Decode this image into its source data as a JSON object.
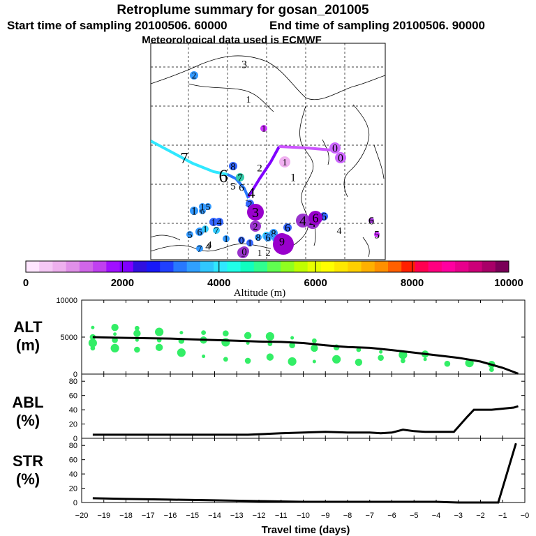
{
  "header": {
    "title": "Retroplume summary for gosan_201005",
    "start_line": "Start time of sampling 20100506. 60000",
    "end_line": "End time of sampling 20100506. 90000",
    "met_line": "Meteorological data used is ECMWF"
  },
  "chart_data": [
    {
      "type": "scatter",
      "name": "retroplume-map",
      "title": "Retroplume summary for gosan_201005",
      "grid": true,
      "trajectory_colored_by_altitude": true,
      "numbered_positions": [
        {
          "label": "3",
          "marker_color": "#000000",
          "marker": false
        },
        {
          "label": "2",
          "marker_color": "#3399ff",
          "marker": true
        },
        {
          "label": "1",
          "marker_color": "#000000",
          "marker": false
        },
        {
          "label": "1",
          "marker_color": "#cc33ff",
          "marker": true
        },
        {
          "label": "1",
          "marker_color": "#000000",
          "marker": false
        },
        {
          "label": "1",
          "marker_color": "#f0b0f0",
          "marker": true
        },
        {
          "label": "0",
          "marker_color": "#cc66ff",
          "marker": true
        },
        {
          "label": "0",
          "marker_color": "#cc66ff",
          "marker": true
        },
        {
          "label": "7",
          "marker_color": "#000000",
          "marker": false
        },
        {
          "label": "8",
          "marker_color": "#3366ff",
          "marker": true
        },
        {
          "label": "6",
          "marker_color": "#000000",
          "marker": false
        },
        {
          "label": "7",
          "marker_color": "#33ccaa",
          "marker": true
        },
        {
          "label": "2",
          "marker_color": "#000000",
          "marker": false
        },
        {
          "label": "5",
          "marker_color": "#000000",
          "marker": false
        },
        {
          "label": "6",
          "marker_color": "#000000",
          "marker": false
        },
        {
          "label": "4",
          "marker_color": "#000000",
          "marker": false
        },
        {
          "label": "1",
          "marker_color": "#000000",
          "marker": false
        },
        {
          "label": "2",
          "marker_color": "#3366ff",
          "marker": true
        },
        {
          "label": "3",
          "marker_color": "#9900cc",
          "marker": true
        },
        {
          "label": "1",
          "marker_color": "#3399ff",
          "marker": true
        },
        {
          "label": "6",
          "marker_color": "#3399ff",
          "marker": true
        },
        {
          "label": "1",
          "marker_color": "#3399ff",
          "marker": true
        },
        {
          "label": "5",
          "marker_color": "#3399ff",
          "marker": true
        },
        {
          "label": "1",
          "marker_color": "#3366ff",
          "marker": true
        },
        {
          "label": "4",
          "marker_color": "#3366ff",
          "marker": true
        },
        {
          "label": "5",
          "marker_color": "#3399ff",
          "marker": true
        },
        {
          "label": "6",
          "marker_color": "#3399ff",
          "marker": true
        },
        {
          "label": "1",
          "marker_color": "#33ccff",
          "marker": true
        },
        {
          "label": "7",
          "marker_color": "#33ccff",
          "marker": true
        },
        {
          "label": "2",
          "marker_color": "#9933cc",
          "marker": true
        },
        {
          "label": "4",
          "marker_color": "#9933cc",
          "marker": true
        },
        {
          "label": "4",
          "marker_color": "#9933cc",
          "marker": true
        },
        {
          "label": "6",
          "marker_color": "#3366ff",
          "marker": true
        },
        {
          "label": "6",
          "marker_color": "#9900cc",
          "marker": true
        },
        {
          "label": "4",
          "marker_color": "#000000",
          "marker": false
        },
        {
          "label": "6",
          "marker_color": "#9933cc",
          "marker": true
        },
        {
          "label": "5",
          "marker_color": "#cc33ff",
          "marker": true
        },
        {
          "label": "6",
          "marker_color": "#3366ff",
          "marker": true
        },
        {
          "label": "8",
          "marker_color": "#3399ff",
          "marker": true
        },
        {
          "label": "5",
          "marker_color": "#33ccff",
          "marker": true
        },
        {
          "label": "4",
          "marker_color": "#000000",
          "marker": false
        },
        {
          "label": "1",
          "marker_color": "#3399ff",
          "marker": true
        },
        {
          "label": "0",
          "marker_color": "#3366ff",
          "marker": true
        },
        {
          "label": "1",
          "marker_color": "#3366ff",
          "marker": true
        },
        {
          "label": "8",
          "marker_color": "#3399ff",
          "marker": true
        },
        {
          "label": "6",
          "marker_color": "#3399ff",
          "marker": true
        },
        {
          "label": "4",
          "marker_color": "#3399ff",
          "marker": true
        },
        {
          "label": "9",
          "marker_color": "#9900cc",
          "marker": true
        },
        {
          "label": "1",
          "marker_color": "#9933cc",
          "marker": true
        },
        {
          "label": "0",
          "marker_color": "#9933cc",
          "marker": true
        },
        {
          "label": "1",
          "marker_color": "#9933cc",
          "marker": true
        },
        {
          "label": "2",
          "marker_color": "#9933cc",
          "marker": true
        },
        {
          "label": "7",
          "marker_color": "#3399ff",
          "marker": true
        },
        {
          "label": "4",
          "marker_color": "#000000",
          "marker": false
        },
        {
          "label": "9",
          "marker_color": "#9900cc",
          "marker": true
        }
      ]
    },
    {
      "type": "colorbar",
      "name": "altitude-colorbar",
      "xlabel": "Altitude (m)",
      "range": [
        0,
        10000
      ],
      "ticks": [
        0,
        2000,
        4000,
        6000,
        8000,
        10000
      ],
      "tick_labels": [
        "0",
        "2000",
        "4000",
        "6000",
        "8000",
        "10000"
      ],
      "colors": [
        "#ffe6ff",
        "#f5c8f5",
        "#eeb0ee",
        "#e090e8",
        "#d066e8",
        "#c040f0",
        "#a010ff",
        "#8000ff",
        "#3010e0",
        "#1818f8",
        "#2040ff",
        "#2878ff",
        "#30a0ff",
        "#30c8ff",
        "#30e8ff",
        "#20ffe8",
        "#10ffc0",
        "#30ff90",
        "#60ff50",
        "#90ff20",
        "#c0ff00",
        "#e8ff00",
        "#ffff00",
        "#ffe800",
        "#ffd000",
        "#ffb000",
        "#ff9000",
        "#ff6000",
        "#ff2000",
        "#ff0050",
        "#ff0080",
        "#ff00a0",
        "#e8008c",
        "#cc0078",
        "#a80068",
        "#7a0058"
      ]
    },
    {
      "type": "line",
      "name": "alt-panel",
      "title": "ALT",
      "title_unit": "(m)",
      "ylim": [
        0,
        10000
      ],
      "yticks": [
        0,
        5000,
        10000
      ],
      "xlim": [
        -20,
        0
      ],
      "x": [
        -19.5,
        -19,
        -18,
        -17,
        -16,
        -15,
        -14,
        -13,
        -12,
        -11,
        -10,
        -9,
        -8,
        -7,
        -6,
        -5,
        -4,
        -3,
        -2,
        -1,
        -0.3
      ],
      "values": [
        5000,
        4950,
        4900,
        4850,
        4800,
        4700,
        4600,
        4500,
        4400,
        4350,
        4200,
        3900,
        3650,
        3550,
        3250,
        2900,
        2550,
        2200,
        1700,
        850,
        60
      ],
      "scatter_color": "#33ee66",
      "scatter_points": [
        {
          "x": -19.5,
          "y": 6300
        },
        {
          "x": -19.5,
          "y": 5000
        },
        {
          "x": -19.5,
          "y": 4200
        },
        {
          "x": -19.5,
          "y": 3500
        },
        {
          "x": -18.5,
          "y": 6300
        },
        {
          "x": -18.5,
          "y": 5400
        },
        {
          "x": -18.5,
          "y": 4600
        },
        {
          "x": -18.5,
          "y": 3500
        },
        {
          "x": -17.5,
          "y": 6200
        },
        {
          "x": -17.5,
          "y": 5500
        },
        {
          "x": -17.5,
          "y": 4600
        },
        {
          "x": -17.5,
          "y": 3300
        },
        {
          "x": -16.5,
          "y": 5700
        },
        {
          "x": -16.5,
          "y": 4600
        },
        {
          "x": -16.5,
          "y": 3600
        },
        {
          "x": -15.5,
          "y": 5600
        },
        {
          "x": -15.5,
          "y": 4500
        },
        {
          "x": -15.5,
          "y": 2900
        },
        {
          "x": -14.5,
          "y": 5600
        },
        {
          "x": -14.5,
          "y": 4600
        },
        {
          "x": -14.5,
          "y": 2400
        },
        {
          "x": -13.5,
          "y": 5500
        },
        {
          "x": -13.5,
          "y": 4300
        },
        {
          "x": -13.5,
          "y": 2000
        },
        {
          "x": -12.5,
          "y": 5200
        },
        {
          "x": -12.5,
          "y": 4200
        },
        {
          "x": -12.5,
          "y": 1800
        },
        {
          "x": -11.5,
          "y": 5100
        },
        {
          "x": -11.5,
          "y": 4100
        },
        {
          "x": -11.5,
          "y": 2300
        },
        {
          "x": -10.5,
          "y": 4900
        },
        {
          "x": -10.5,
          "y": 3900
        },
        {
          "x": -10.5,
          "y": 1700
        },
        {
          "x": -9.5,
          "y": 4500
        },
        {
          "x": -9.5,
          "y": 3500
        },
        {
          "x": -9.5,
          "y": 1700
        },
        {
          "x": -8.5,
          "y": 3600
        },
        {
          "x": -8.5,
          "y": 2000
        },
        {
          "x": -7.5,
          "y": 3300
        },
        {
          "x": -7.5,
          "y": 1600
        },
        {
          "x": -6.5,
          "y": 3000
        },
        {
          "x": -6.5,
          "y": 2200
        },
        {
          "x": -5.5,
          "y": 2600
        },
        {
          "x": -5.5,
          "y": 1800
        },
        {
          "x": -4.5,
          "y": 2700
        },
        {
          "x": -4.5,
          "y": 2000
        },
        {
          "x": -3.5,
          "y": 1400
        },
        {
          "x": -2.5,
          "y": 1500
        },
        {
          "x": -1.5,
          "y": 600
        },
        {
          "x": -1.5,
          "y": 1300
        }
      ]
    },
    {
      "type": "line",
      "name": "abl-panel",
      "title": "ABL",
      "title_unit": "(%)",
      "ylim": [
        0,
        90
      ],
      "yticks": [
        0,
        20,
        40,
        60,
        80
      ],
      "xlim": [
        -20,
        0
      ],
      "x": [
        -19.5,
        -18,
        -16,
        -14,
        -12.5,
        -11,
        -9,
        -8,
        -7,
        -6.5,
        -6,
        -5.5,
        -5,
        -4.5,
        -4,
        -3.5,
        -3.2,
        -2.6,
        -2.3,
        -1.5,
        -0.5,
        -0.3
      ],
      "values": [
        5,
        5,
        5,
        5,
        5,
        7,
        9,
        8,
        8,
        7,
        8,
        12,
        10,
        9,
        9,
        9,
        9,
        30,
        40,
        40,
        43,
        45
      ]
    },
    {
      "type": "line",
      "name": "str-panel",
      "title": "STR",
      "title_unit": "(%)",
      "ylim": [
        0,
        90
      ],
      "yticks": [
        0,
        20,
        40,
        60,
        80
      ],
      "xlim": [
        -20,
        0
      ],
      "xlabel": "Travel time (days)",
      "xticks": [
        -20,
        -19,
        -18,
        -17,
        -16,
        -15,
        -14,
        -13,
        -12,
        -11,
        -10,
        -9,
        -8,
        -7,
        -6,
        -5,
        -4,
        -3,
        -2,
        -1,
        0
      ],
      "tick_labels": [
        "−20",
        "−19",
        "−18",
        "−17",
        "−16",
        "−15",
        "−14",
        "−13",
        "−12",
        "−11",
        "−10",
        "−9",
        "−8",
        "−7",
        "−6",
        "−5",
        "−4",
        "−3",
        "−2",
        "−1",
        "−0"
      ],
      "x": [
        -19.5,
        -18,
        -16,
        -14,
        -12,
        -10,
        -8,
        -6,
        -4,
        -3,
        -2,
        -1.4,
        -1.2,
        -0.4
      ],
      "values": [
        6,
        5,
        4,
        3,
        2,
        1,
        1,
        1,
        1,
        0,
        0,
        0,
        0,
        83
      ]
    }
  ]
}
